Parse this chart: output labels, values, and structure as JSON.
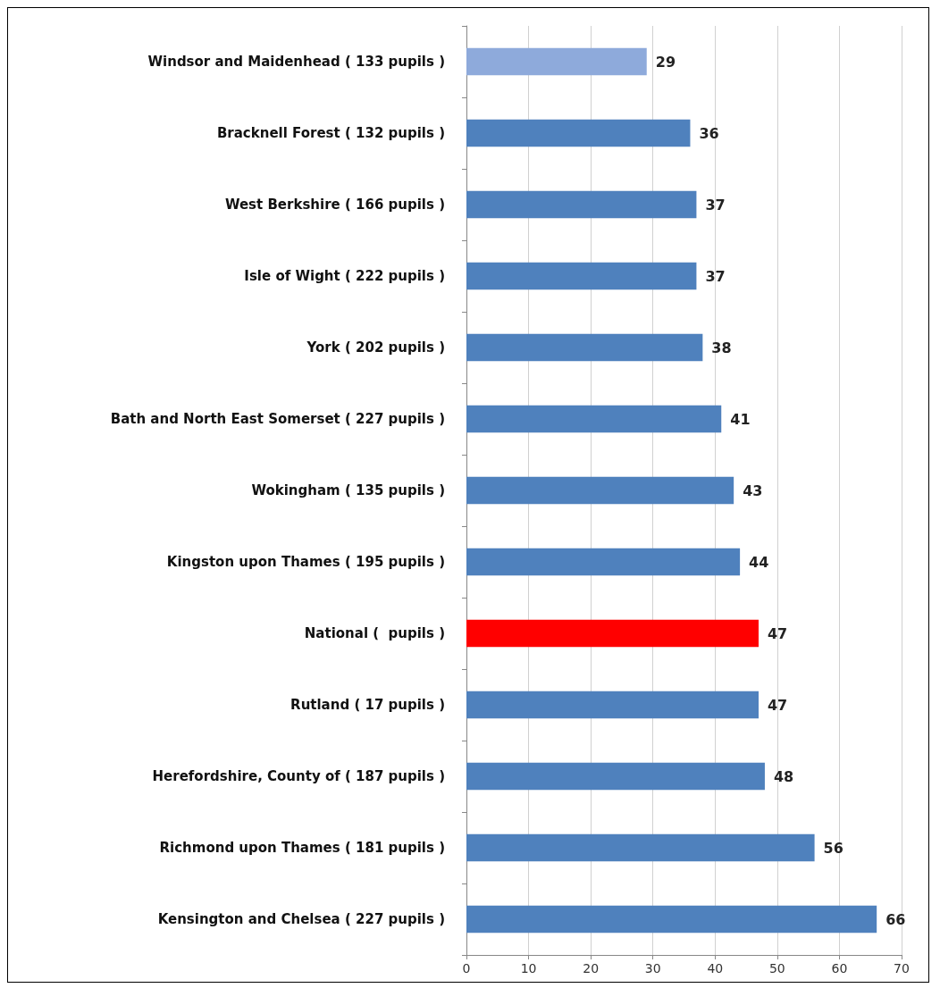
{
  "chart_data": {
    "type": "bar",
    "orientation": "horizontal",
    "categories": [
      "Windsor and Maidenhead ( 133 pupils )",
      "Bracknell Forest ( 132 pupils )",
      "West Berkshire ( 166 pupils )",
      "Isle of Wight ( 222 pupils )",
      "York ( 202 pupils )",
      "Bath and North East Somerset ( 227 pupils )",
      "Wokingham ( 135 pupils )",
      "Kingston upon Thames ( 195 pupils )",
      "National (  pupils )",
      "Rutland ( 17 pupils )",
      "Herefordshire, County of ( 187 pupils )",
      "Richmond upon Thames ( 181 pupils )",
      "Kensington and Chelsea ( 227 pupils )"
    ],
    "values": [
      29,
      36,
      37,
      37,
      38,
      41,
      43,
      44,
      47,
      47,
      48,
      56,
      66
    ],
    "colors": [
      "#8eaadb",
      "#4f81bd",
      "#4f81bd",
      "#4f81bd",
      "#4f81bd",
      "#4f81bd",
      "#4f81bd",
      "#4f81bd",
      "#ff0000",
      "#4f81bd",
      "#4f81bd",
      "#4f81bd",
      "#4f81bd"
    ],
    "data_labels": true,
    "xlim": [
      0,
      70
    ],
    "xticks": [
      0,
      10,
      20,
      30,
      40,
      50,
      60,
      70
    ],
    "grid": "x"
  }
}
